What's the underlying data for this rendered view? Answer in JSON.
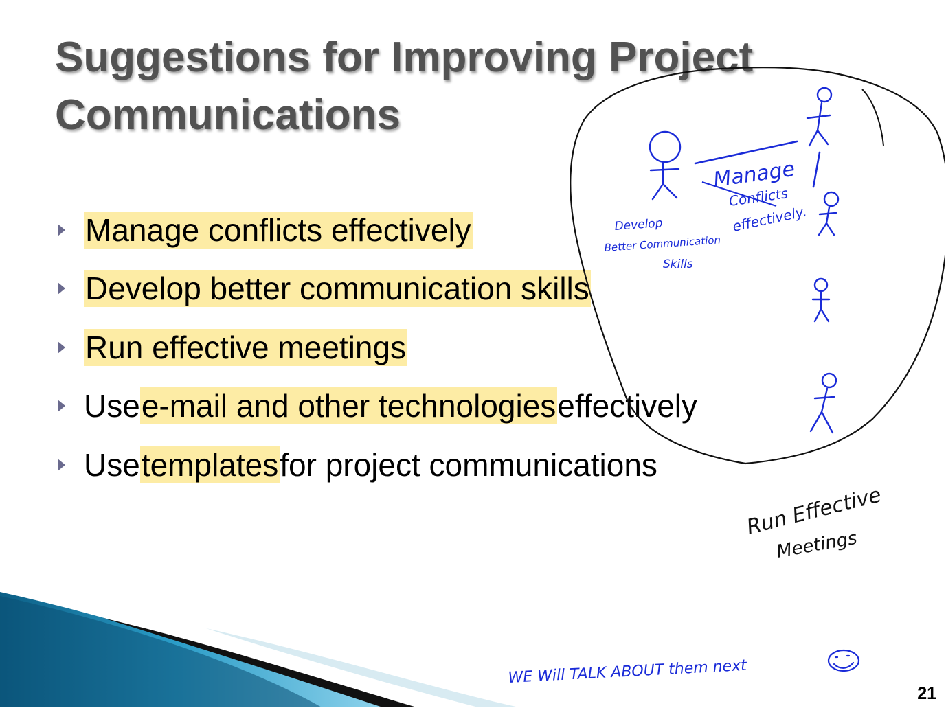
{
  "slide": {
    "title_line1": "Suggestions for Improving Project",
    "title_line2": "Communications",
    "page_number": "21"
  },
  "bullets": [
    {
      "pre": "",
      "hl": "Manage conflicts effectively",
      "post": ""
    },
    {
      "pre": "",
      "hl": "Develop better communication skills",
      "post": ""
    },
    {
      "pre": "",
      "hl": "Run effective meetings",
      "post": ""
    },
    {
      "pre": "Use ",
      "hl": "e-mail and other technologies",
      "post": " effectively"
    },
    {
      "pre": "Use ",
      "hl": "templates",
      "post": " for project communications"
    }
  ],
  "annotations": {
    "manage_line1": "Manage",
    "manage_line2": "Conflicts",
    "manage_line3": "effectively.",
    "develop_line1": "Develop",
    "develop_line2": "Better Communication",
    "develop_line3": "Skills",
    "run_line1": "Run Effective",
    "run_line2": "Meetings",
    "footer_note": "WE Will TALK ABOUT them next"
  },
  "colors": {
    "highlight": "#fdeca5",
    "ink_blue": "#1a2bd8",
    "ink_black": "#111111",
    "title": "#525252"
  }
}
